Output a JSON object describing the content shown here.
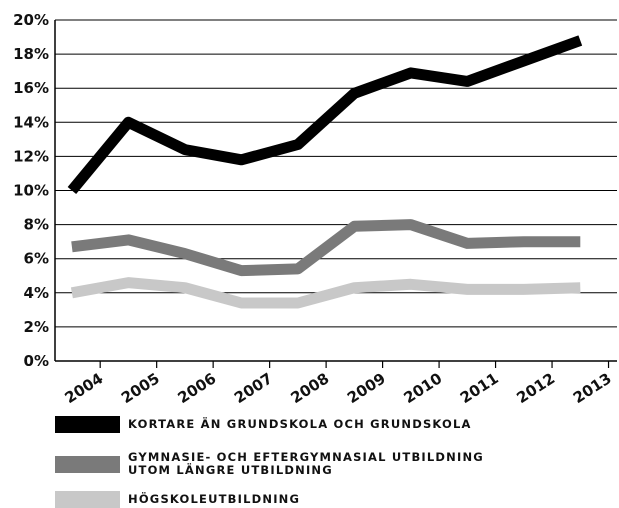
{
  "chart_data": {
    "type": "line",
    "title": "",
    "xlabel": "",
    "ylabel": "",
    "y_ticks": [
      "0%",
      "2%",
      "4%",
      "6%",
      "8%",
      "10%",
      "12%",
      "14%",
      "16%",
      "18%",
      "20%"
    ],
    "x_ticks": [
      "2004",
      "2005",
      "2006",
      "2007",
      "2008",
      "2009",
      "2010",
      "2011",
      "2012",
      "2013"
    ],
    "ylim": [
      0,
      20
    ],
    "grid": true,
    "legend_position": "bottom",
    "series": [
      {
        "name": "KORTARE ÄN GRUNDSKOLA OCH GRUNDSKOLA",
        "name_lines": [
          "KORTARE ÄN GRUNDSKOLA OCH GRUNDSKOLA"
        ],
        "color": "#000000",
        "x": [
          2003.5,
          2004.5,
          2005.5,
          2006.5,
          2007.5,
          2008.5,
          2009.5,
          2010.5,
          2011.5,
          2012.5
        ],
        "values": [
          10.0,
          14.0,
          12.4,
          11.8,
          12.7,
          15.7,
          16.9,
          16.4,
          17.6,
          18.8
        ]
      },
      {
        "name": "GYMNASIE- OCH EFTERGYMNASIAL UTBILDNING UTOM LÄNGRE UTBILDNING",
        "name_lines": [
          "GYMNASIE- OCH EFTERGYMNASIAL UTBILDNING",
          "UTOM LÄNGRE UTBILDNING"
        ],
        "color": "#7a7a7a",
        "x": [
          2003.5,
          2004.5,
          2005.5,
          2006.5,
          2007.5,
          2008.5,
          2009.5,
          2010.5,
          2011.5,
          2012.5
        ],
        "values": [
          6.7,
          7.1,
          6.3,
          5.3,
          5.4,
          7.9,
          8.0,
          6.9,
          7.0,
          7.0
        ]
      },
      {
        "name": "HÖGSKOLEUTBILDNING",
        "name_lines": [
          "HÖGSKOLEUTBILDNING"
        ],
        "color": "#c8c8c8",
        "x": [
          2003.5,
          2004.5,
          2005.5,
          2006.5,
          2007.5,
          2008.5,
          2009.5,
          2010.5,
          2011.5,
          2012.5
        ],
        "values": [
          4.0,
          4.6,
          4.3,
          3.4,
          3.4,
          4.3,
          4.5,
          4.2,
          4.2,
          4.3
        ]
      }
    ]
  }
}
